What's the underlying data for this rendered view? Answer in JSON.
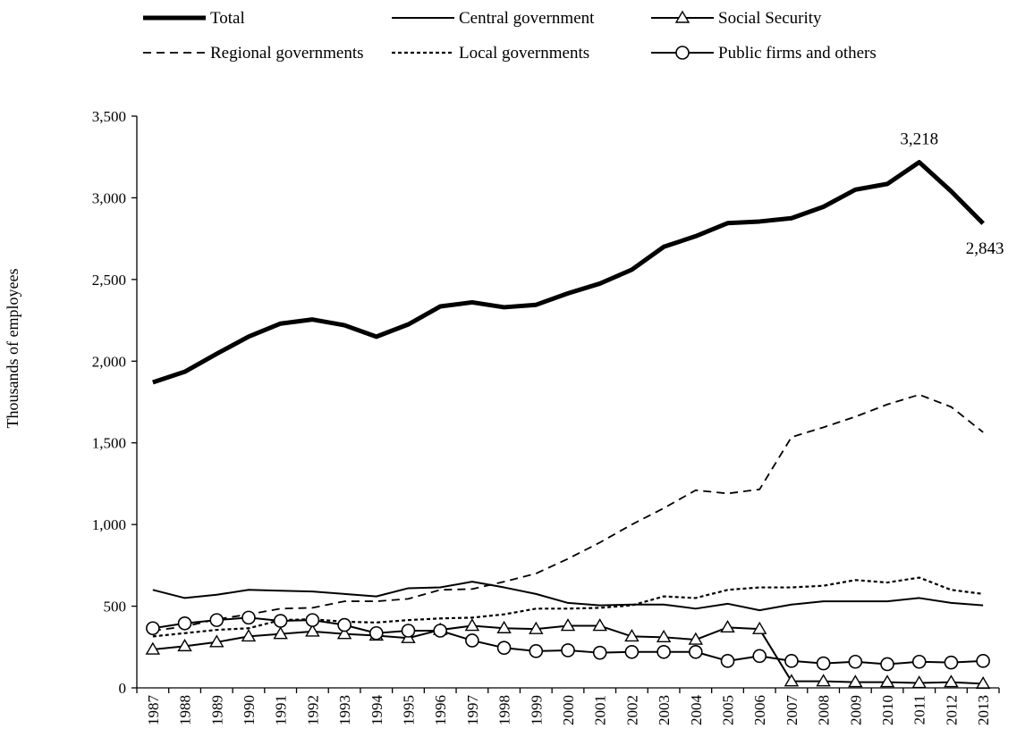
{
  "chart_data": {
    "type": "line",
    "title": "",
    "xlabel": "",
    "ylabel": "Thousands of employees",
    "ylim": [
      0,
      3500
    ],
    "yticks": [
      0,
      500,
      1000,
      1500,
      2000,
      2500,
      3000,
      3500
    ],
    "ytick_labels": [
      "0",
      "500",
      "1,000",
      "1,500",
      "2,000",
      "2,500",
      "3,000",
      "3,500"
    ],
    "grid": false,
    "legend_position": "top",
    "categories": [
      "1987",
      "1988",
      "1989",
      "1990",
      "1991",
      "1992",
      "1993",
      "1994",
      "1995",
      "1996",
      "1997",
      "1998",
      "1999",
      "2000",
      "2001",
      "2002",
      "2003",
      "2004",
      "2005",
      "2006",
      "2007",
      "2008",
      "2009",
      "2010",
      "2011",
      "2012",
      "2013"
    ],
    "series": [
      {
        "name": "Total",
        "style": "thick-solid",
        "values": [
          1870,
          1935,
          2045,
          2150,
          2230,
          2255,
          2220,
          2150,
          2225,
          2335,
          2360,
          2330,
          2345,
          2415,
          2475,
          2560,
          2700,
          2765,
          2845,
          2855,
          2875,
          2945,
          3050,
          3085,
          3218,
          3040,
          2843
        ]
      },
      {
        "name": "Central government",
        "style": "solid",
        "values": [
          600,
          550,
          570,
          600,
          595,
          590,
          575,
          560,
          610,
          615,
          650,
          615,
          575,
          520,
          505,
          510,
          510,
          485,
          515,
          475,
          510,
          530,
          530,
          530,
          550,
          520,
          505
        ]
      },
      {
        "name": "Social Security",
        "style": "triangle-marker",
        "values": [
          235,
          255,
          280,
          315,
          330,
          345,
          330,
          320,
          305,
          355,
          380,
          365,
          360,
          380,
          380,
          315,
          310,
          295,
          370,
          360,
          40,
          40,
          35,
          35,
          30,
          35,
          25
        ]
      },
      {
        "name": "Regional governments",
        "style": "long-dash",
        "values": [
          350,
          375,
          420,
          450,
          485,
          490,
          530,
          530,
          545,
          600,
          605,
          650,
          700,
          790,
          890,
          1000,
          1100,
          1210,
          1190,
          1215,
          1535,
          1595,
          1660,
          1735,
          1795,
          1720,
          1565
        ]
      },
      {
        "name": "Local governments",
        "style": "short-dash",
        "values": [
          315,
          335,
          355,
          365,
          415,
          420,
          405,
          400,
          415,
          425,
          430,
          450,
          485,
          485,
          490,
          505,
          560,
          550,
          600,
          615,
          615,
          625,
          660,
          645,
          675,
          600,
          575
        ]
      },
      {
        "name": "Public firms and others",
        "style": "circle-marker",
        "values": [
          365,
          395,
          415,
          430,
          410,
          415,
          385,
          335,
          350,
          350,
          290,
          245,
          225,
          230,
          215,
          220,
          220,
          220,
          165,
          195,
          165,
          150,
          160,
          145,
          160,
          155,
          165
        ]
      }
    ],
    "annotations": [
      {
        "text": "3,218",
        "x": "2011",
        "y": 3218,
        "position": "above"
      },
      {
        "text": "2,843",
        "x": "2013",
        "y": 2843,
        "position": "below"
      }
    ]
  }
}
